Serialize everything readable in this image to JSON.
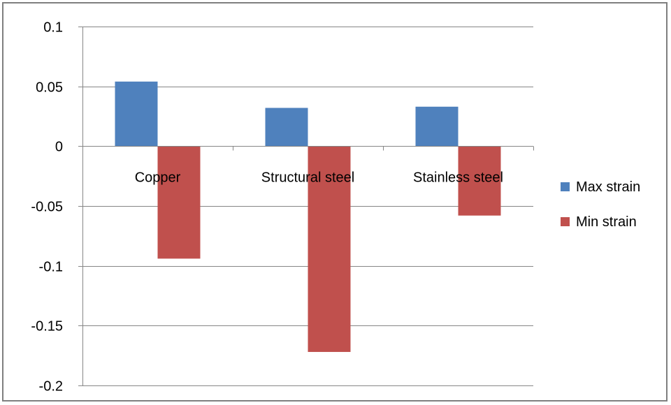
{
  "chart_data": {
    "type": "bar",
    "title": "",
    "xlabel": "",
    "ylabel": "",
    "categories": [
      "Copper",
      "Structural steel",
      "Stainless steel"
    ],
    "series": [
      {
        "name": "Max strain",
        "color": "#4f81bd",
        "values": [
          0.054,
          0.032,
          0.033
        ]
      },
      {
        "name": "Min strain",
        "color": "#c0504d",
        "values": [
          -0.094,
          -0.172,
          -0.058
        ]
      }
    ],
    "ylim": [
      -0.2,
      0.1
    ],
    "yticks": [
      0.1,
      0.05,
      0,
      -0.05,
      -0.1,
      -0.15,
      -0.2
    ],
    "ytick_labels": [
      "0.1",
      "0.05",
      "0",
      "-0.05",
      "-0.1",
      "-0.15",
      "-0.2"
    ],
    "grid": true,
    "legend_position": "right"
  }
}
